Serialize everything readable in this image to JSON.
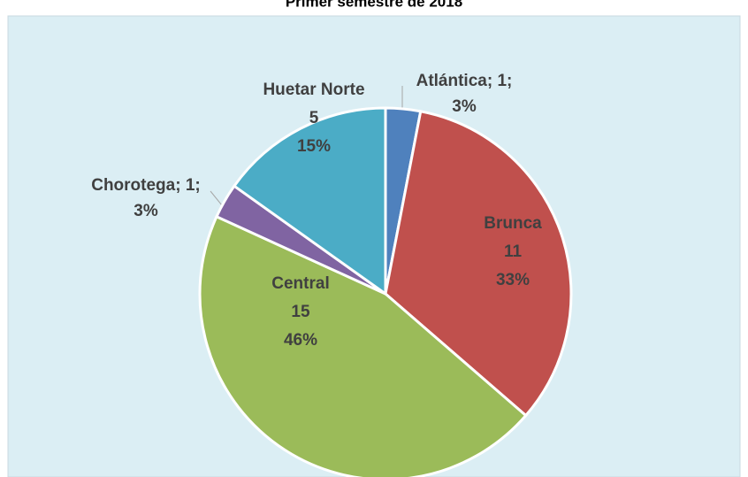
{
  "chart_data": {
    "type": "pie",
    "title": "Primer semestre de 2018",
    "categories": [
      "Atlántica",
      "Brunca",
      "Central",
      "Chorotega",
      "Huetar Norte"
    ],
    "values": [
      1,
      11,
      15,
      1,
      5
    ],
    "percentages": [
      3,
      33,
      46,
      3,
      15
    ],
    "percentage_labels": [
      "3%",
      "33%",
      "46%",
      "3%",
      "15%"
    ],
    "colors": [
      "#4f81bd",
      "#c0504d",
      "#9bbb59",
      "#8064a2",
      "#4bacc6"
    ],
    "label_separator": ";",
    "inline_labels": [
      true,
      false,
      false,
      true,
      false
    ]
  }
}
